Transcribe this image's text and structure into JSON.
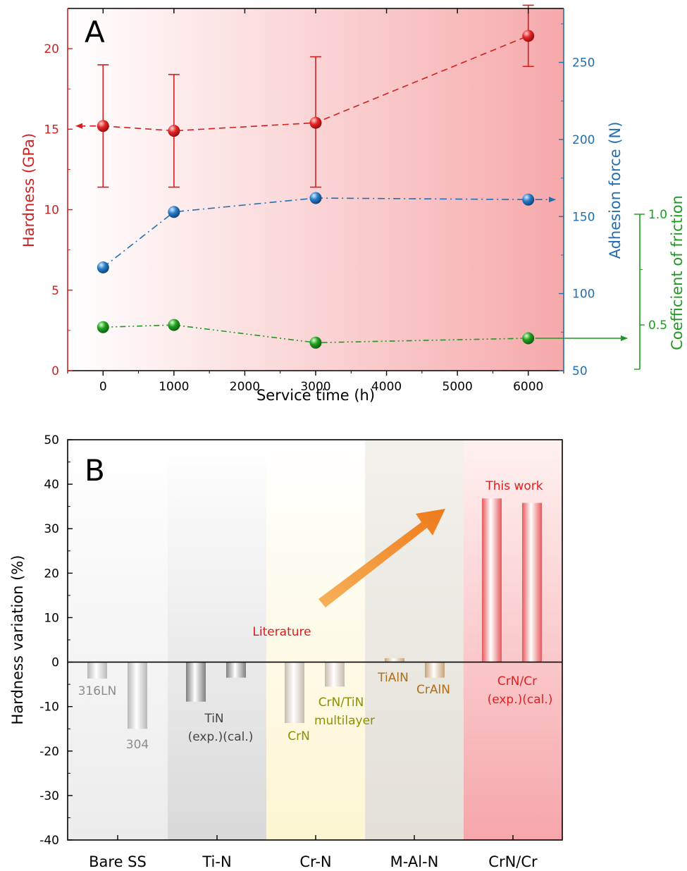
{
  "chart_data": [
    {
      "type": "line",
      "panel_label": "A",
      "xlabel": "Service time (h)",
      "x_ticks": [
        "0",
        "1000",
        "2000",
        "3000",
        "4000",
        "5000",
        "6000"
      ],
      "xlim": [
        -500,
        6500
      ],
      "axes": {
        "hardness": {
          "label": "Hardness (GPa)",
          "ylim": [
            0,
            22.5
          ],
          "ticks": [
            "0",
            "5",
            "10",
            "15",
            "20"
          ],
          "color": "#d21f1f"
        },
        "adhesion": {
          "label": "Adhesion force (N)",
          "ylim": [
            50,
            285
          ],
          "ticks": [
            "50",
            "100",
            "150",
            "200",
            "250"
          ],
          "color": "#1f6fb4"
        },
        "friction": {
          "label": "Coefficient of friction",
          "ylim": [
            0.3,
            1.0
          ],
          "ticks": [
            "0.5",
            "1.0"
          ],
          "color": "#1e9b1e"
        }
      },
      "series": [
        {
          "axis": "hardness",
          "x": [
            0,
            1000,
            3000,
            6000
          ],
          "y": [
            15.2,
            14.9,
            15.4,
            20.8
          ],
          "err_low": [
            11.4,
            11.4,
            11.4,
            18.9
          ],
          "err_high": [
            19.0,
            18.4,
            19.5,
            22.7
          ],
          "color": "#d21f1f"
        },
        {
          "axis": "adhesion",
          "x": [
            0,
            1000,
            3000,
            6000
          ],
          "y": [
            117,
            153,
            162,
            161
          ],
          "color": "#1f6fb4"
        },
        {
          "axis": "friction",
          "x": [
            0,
            1000,
            3000,
            6000
          ],
          "y": [
            0.49,
            0.5,
            0.42,
            0.44
          ],
          "color": "#1e9b1e"
        }
      ]
    },
    {
      "type": "bar",
      "panel_label": "B",
      "ylabel": "Hardness variation (%)",
      "ylim": [
        -40,
        50
      ],
      "y_ticks": [
        "50",
        "40",
        "30",
        "20",
        "10",
        "0",
        "-10",
        "-20",
        "-30",
        "-40"
      ],
      "categories": [
        "Bare SS",
        "Ti-N",
        "Cr-N",
        "M-Al-N",
        "CrN/Cr"
      ],
      "bars": [
        {
          "group": "Bare SS",
          "value": -3.7,
          "color": "#b8b8b8"
        },
        {
          "group": "Bare SS",
          "value": -15.0,
          "color": "#b8b8b8"
        },
        {
          "group": "Ti-N",
          "value": -8.9,
          "color": "#7f7f7f"
        },
        {
          "group": "Ti-N",
          "value": -3.5,
          "color": "#7f7f7f"
        },
        {
          "group": "Cr-N",
          "value": -13.7,
          "color": "#c6bcae"
        },
        {
          "group": "Cr-N",
          "value": -5.5,
          "color": "#c6bcae"
        },
        {
          "group": "M-Al-N",
          "value": 0.9,
          "color": "#c8a47a"
        },
        {
          "group": "M-Al-N",
          "value": -3.5,
          "color": "#c8a47a"
        },
        {
          "group": "CrN/Cr",
          "value": 36.8,
          "color": "#e6595c"
        },
        {
          "group": "CrN/Cr",
          "value": 35.8,
          "color": "#e6595c"
        }
      ],
      "annotations": {
        "bare_316": "316LN",
        "bare_304": "304",
        "tin_line1": "TiN",
        "tin_line2": "(exp.)(cal.)",
        "crn": "CrN",
        "crntin_line1": "CrN/TiN",
        "crntin_line2": "multilayer",
        "tialn": "TiAlN",
        "cralN": "CrAlN",
        "crncr_line1": "CrN/Cr",
        "crncr_line2": "(exp.)(cal.)",
        "this_work": "This work",
        "literature": "Literature"
      }
    }
  ]
}
